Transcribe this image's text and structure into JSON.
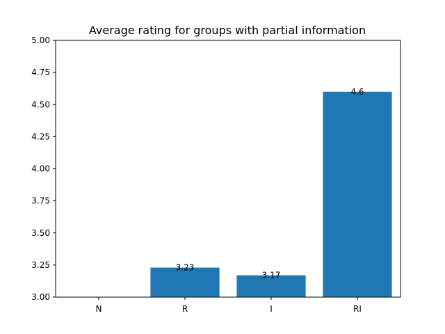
{
  "chart_data": {
    "type": "bar",
    "title": "Average rating for groups with partial information",
    "xlabel": "",
    "ylabel": "",
    "categories": [
      "N",
      "R",
      "I",
      "RI"
    ],
    "values": [
      3.0,
      3.23,
      3.17,
      4.6
    ],
    "data_labels": [
      "",
      "3.23",
      "3.17",
      "4.6"
    ],
    "ylim": [
      3.0,
      5.0
    ],
    "yticks": [
      3.0,
      3.25,
      3.5,
      3.75,
      4.0,
      4.25,
      4.5,
      4.75,
      5.0
    ],
    "ytick_labels": [
      "3.00",
      "3.25",
      "3.50",
      "3.75",
      "4.00",
      "4.25",
      "4.50",
      "4.75",
      "5.00"
    ],
    "bar_color": "#1f77b4",
    "grid": false,
    "legend": "none"
  }
}
